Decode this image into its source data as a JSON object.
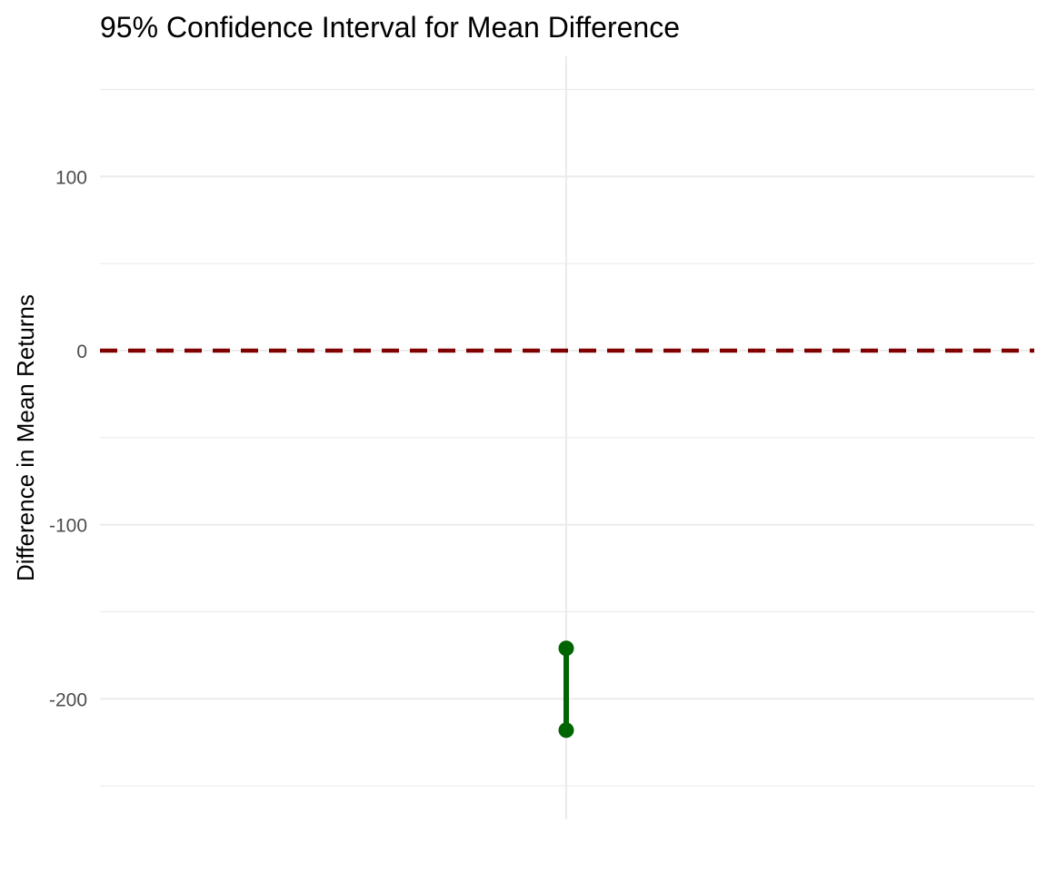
{
  "chart_data": {
    "type": "errorbar",
    "title": "95% Confidence Interval for Mean Difference",
    "xlabel": "",
    "ylabel": "Difference in Mean Returns",
    "ylim": [
      -270,
      168
    ],
    "y_ticks": [
      -200,
      -100,
      0,
      100
    ],
    "y_tick_labels": [
      "-200",
      "-100",
      "0",
      "100"
    ],
    "grid": true,
    "interval": {
      "lower": -218,
      "upper": -171
    },
    "reference_line": {
      "value": 0,
      "style": "dashed"
    },
    "colors": {
      "interval": "#006400",
      "reference_line": "#800000",
      "grid": "#ebebeb",
      "tick_text": "#4d4d4d"
    }
  }
}
